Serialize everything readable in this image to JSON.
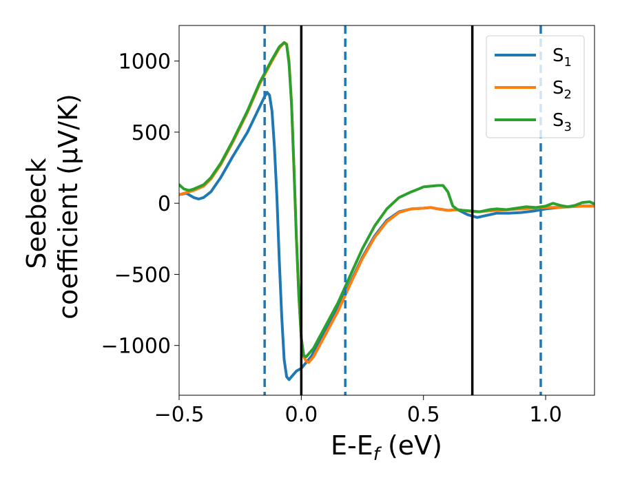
{
  "chart_data": {
    "type": "line",
    "xlabel": "E-E",
    "xlabel_sub": "f",
    "xlabel_unit": " (eV)",
    "ylabel_line1": "Seebeck",
    "ylabel_line2": "coefficient  (μV/K)",
    "xlim": [
      -0.5,
      1.2
    ],
    "ylim": [
      -1350,
      1250
    ],
    "x_ticks": [
      -0.5,
      0.0,
      0.5,
      1.0
    ],
    "x_tick_labels": [
      "−0.5",
      "0.0",
      "0.5",
      "1.0"
    ],
    "y_ticks": [
      -1000,
      -500,
      0,
      500,
      1000
    ],
    "y_tick_labels": [
      "−1000",
      "−500",
      "0",
      "500",
      "1000"
    ],
    "grid": false,
    "legend_position": "top-right",
    "vlines_solid": [
      0.0,
      0.7
    ],
    "vlines_dashed": [
      -0.15,
      0.18,
      0.98
    ],
    "series": [
      {
        "name": "S",
        "name_sub": "1",
        "color": "#1f77b4",
        "points": [
          [
            -0.5,
            60
          ],
          [
            -0.47,
            70
          ],
          [
            -0.44,
            40
          ],
          [
            -0.42,
            30
          ],
          [
            -0.4,
            40
          ],
          [
            -0.37,
            80
          ],
          [
            -0.33,
            180
          ],
          [
            -0.28,
            330
          ],
          [
            -0.22,
            500
          ],
          [
            -0.17,
            680
          ],
          [
            -0.15,
            750
          ],
          [
            -0.14,
            780
          ],
          [
            -0.13,
            760
          ],
          [
            -0.12,
            650
          ],
          [
            -0.11,
            400
          ],
          [
            -0.1,
            50
          ],
          [
            -0.09,
            -400
          ],
          [
            -0.08,
            -800
          ],
          [
            -0.07,
            -1100
          ],
          [
            -0.06,
            -1220
          ],
          [
            -0.05,
            -1240
          ],
          [
            -0.04,
            -1220
          ],
          [
            -0.02,
            -1180
          ],
          [
            0.0,
            -1160
          ],
          [
            0.02,
            -1120
          ],
          [
            0.04,
            -1080
          ],
          [
            0.1,
            -900
          ],
          [
            0.15,
            -740
          ],
          [
            0.2,
            -560
          ],
          [
            0.25,
            -380
          ],
          [
            0.3,
            -230
          ],
          [
            0.35,
            -120
          ],
          [
            0.4,
            -60
          ],
          [
            0.45,
            -40
          ],
          [
            0.5,
            -35
          ],
          [
            0.53,
            -30
          ],
          [
            0.56,
            -40
          ],
          [
            0.6,
            -50
          ],
          [
            0.64,
            -45
          ],
          [
            0.68,
            -80
          ],
          [
            0.72,
            -100
          ],
          [
            0.76,
            -85
          ],
          [
            0.8,
            -70
          ],
          [
            0.85,
            -70
          ],
          [
            0.9,
            -65
          ],
          [
            0.95,
            -55
          ],
          [
            1.0,
            -40
          ],
          [
            1.05,
            -30
          ],
          [
            1.1,
            -25
          ],
          [
            1.15,
            -20
          ],
          [
            1.2,
            -20
          ]
        ]
      },
      {
        "name": "S",
        "name_sub": "2",
        "color": "#ff7f0e",
        "points": [
          [
            -0.5,
            60
          ],
          [
            -0.47,
            75
          ],
          [
            -0.44,
            90
          ],
          [
            -0.4,
            120
          ],
          [
            -0.37,
            170
          ],
          [
            -0.33,
            270
          ],
          [
            -0.28,
            430
          ],
          [
            -0.22,
            640
          ],
          [
            -0.17,
            840
          ],
          [
            -0.12,
            1000
          ],
          [
            -0.09,
            1090
          ],
          [
            -0.07,
            1130
          ],
          [
            -0.06,
            1120
          ],
          [
            -0.05,
            1000
          ],
          [
            -0.04,
            700
          ],
          [
            -0.03,
            250
          ],
          [
            -0.02,
            -250
          ],
          [
            -0.01,
            -650
          ],
          [
            0.0,
            -950
          ],
          [
            0.01,
            -1080
          ],
          [
            0.02,
            -1110
          ],
          [
            0.03,
            -1120
          ],
          [
            0.05,
            -1080
          ],
          [
            0.1,
            -920
          ],
          [
            0.15,
            -760
          ],
          [
            0.2,
            -570
          ],
          [
            0.25,
            -390
          ],
          [
            0.3,
            -240
          ],
          [
            0.35,
            -130
          ],
          [
            0.4,
            -65
          ],
          [
            0.45,
            -40
          ],
          [
            0.5,
            -35
          ],
          [
            0.53,
            -30
          ],
          [
            0.56,
            -40
          ],
          [
            0.6,
            -50
          ],
          [
            0.64,
            -45
          ],
          [
            0.68,
            -55
          ],
          [
            0.72,
            -60
          ],
          [
            0.76,
            -55
          ],
          [
            0.8,
            -50
          ],
          [
            0.85,
            -45
          ],
          [
            0.9,
            -40
          ],
          [
            0.95,
            -35
          ],
          [
            1.0,
            -30
          ],
          [
            1.05,
            -28
          ],
          [
            1.1,
            -25
          ],
          [
            1.15,
            -20
          ],
          [
            1.2,
            -20
          ]
        ]
      },
      {
        "name": "S",
        "name_sub": "3",
        "color": "#2ca02c",
        "points": [
          [
            -0.5,
            130
          ],
          [
            -0.48,
            100
          ],
          [
            -0.46,
            90
          ],
          [
            -0.44,
            100
          ],
          [
            -0.4,
            130
          ],
          [
            -0.37,
            180
          ],
          [
            -0.33,
            280
          ],
          [
            -0.28,
            440
          ],
          [
            -0.22,
            650
          ],
          [
            -0.17,
            850
          ],
          [
            -0.12,
            1010
          ],
          [
            -0.09,
            1100
          ],
          [
            -0.07,
            1130
          ],
          [
            -0.06,
            1115
          ],
          [
            -0.05,
            980
          ],
          [
            -0.04,
            700
          ],
          [
            -0.03,
            250
          ],
          [
            -0.02,
            -250
          ],
          [
            -0.01,
            -650
          ],
          [
            0.0,
            -950
          ],
          [
            0.01,
            -1070
          ],
          [
            0.02,
            -1080
          ],
          [
            0.03,
            -1060
          ],
          [
            0.05,
            -1020
          ],
          [
            0.1,
            -860
          ],
          [
            0.15,
            -700
          ],
          [
            0.2,
            -510
          ],
          [
            0.25,
            -320
          ],
          [
            0.3,
            -160
          ],
          [
            0.35,
            -40
          ],
          [
            0.4,
            40
          ],
          [
            0.45,
            80
          ],
          [
            0.48,
            100
          ],
          [
            0.5,
            115
          ],
          [
            0.53,
            120
          ],
          [
            0.56,
            125
          ],
          [
            0.58,
            125
          ],
          [
            0.6,
            80
          ],
          [
            0.62,
            -20
          ],
          [
            0.64,
            -45
          ],
          [
            0.66,
            -50
          ],
          [
            0.7,
            -55
          ],
          [
            0.73,
            -60
          ],
          [
            0.77,
            -45
          ],
          [
            0.8,
            -40
          ],
          [
            0.84,
            -45
          ],
          [
            0.88,
            -35
          ],
          [
            0.92,
            -25
          ],
          [
            0.96,
            -30
          ],
          [
            1.0,
            -20
          ],
          [
            1.03,
            0
          ],
          [
            1.06,
            -15
          ],
          [
            1.09,
            -25
          ],
          [
            1.12,
            -15
          ],
          [
            1.15,
            5
          ],
          [
            1.18,
            10
          ],
          [
            1.2,
            -5
          ]
        ]
      }
    ]
  }
}
